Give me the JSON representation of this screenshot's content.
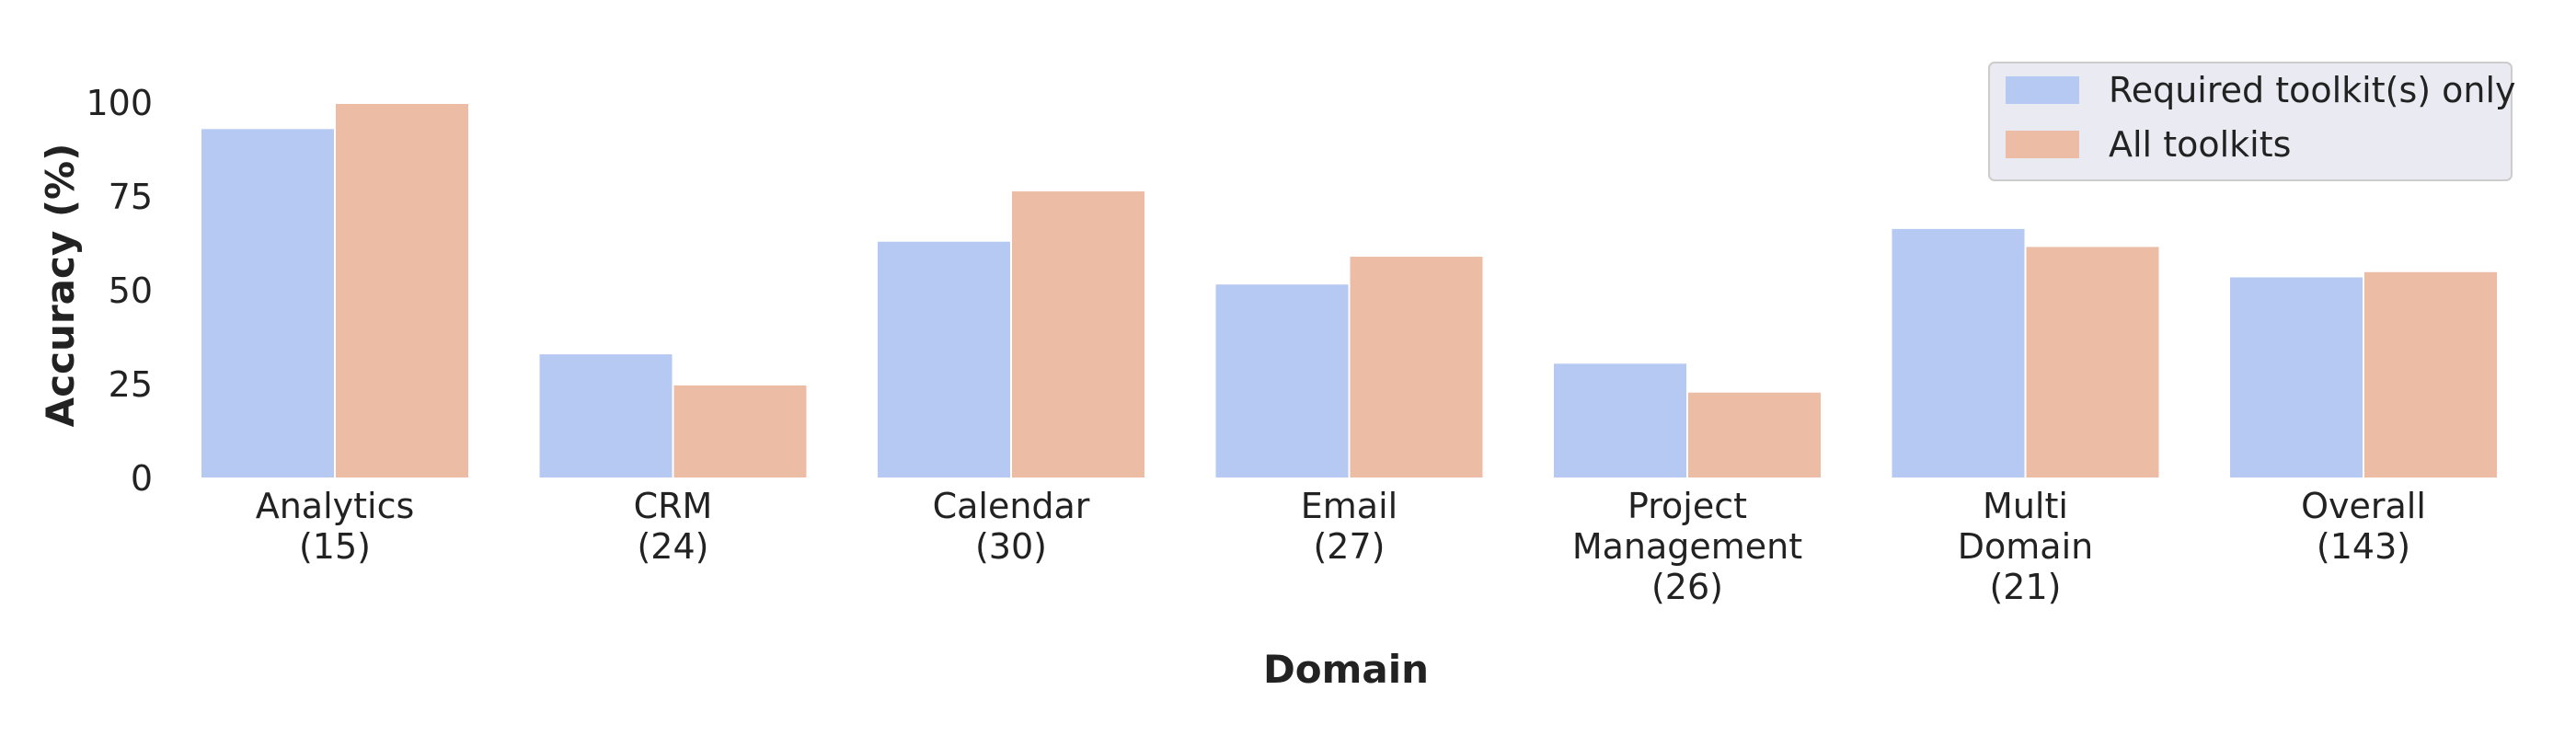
{
  "chart_data": {
    "type": "bar",
    "categories": [
      [
        "Analytics",
        "(15)"
      ],
      [
        "CRM",
        "(24)"
      ],
      [
        "Calendar",
        "(30)"
      ],
      [
        "Email",
        "(27)"
      ],
      [
        "Project",
        "Management",
        "(26)"
      ],
      [
        "Multi",
        "Domain",
        "(21)"
      ],
      [
        "Overall",
        "(143)"
      ]
    ],
    "series": [
      {
        "name": "Required toolkit(s) only",
        "color": "#b6c9f3",
        "values": [
          93.3,
          33.3,
          63.3,
          51.9,
          30.8,
          66.7,
          53.8
        ]
      },
      {
        "name": "All toolkits",
        "color": "#ecbca5",
        "values": [
          100,
          25.0,
          76.7,
          59.3,
          23.1,
          61.9,
          55.2
        ]
      }
    ],
    "xlabel": "Domain",
    "ylabel": "Accuracy (%)",
    "ylim": [
      0,
      100
    ],
    "yticks": [
      0,
      25,
      50,
      75,
      100
    ],
    "grid": false,
    "legend_position": "top-right"
  }
}
